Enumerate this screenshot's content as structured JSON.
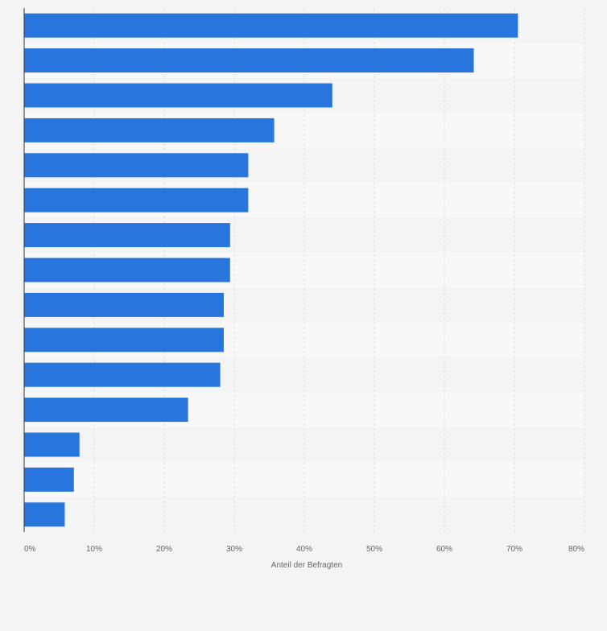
{
  "colors": {
    "page_background": "#f4f4f4",
    "bar": "#2876dd",
    "row_band_a": "#f4f4f4",
    "row_band_b": "#f8f8f8",
    "gridline": "#dcdcdc",
    "axis": "#333333",
    "tick_text": "#666666"
  },
  "chart_data": {
    "type": "bar",
    "orientation": "horizontal",
    "title": "",
    "xlabel": "Anteil der Befragten",
    "ylabel": "",
    "xlim": [
      0,
      80
    ],
    "x_ticks": [
      0,
      10,
      20,
      30,
      40,
      50,
      60,
      70,
      80
    ],
    "x_tick_labels": [
      "0%",
      "10%",
      "20%",
      "30%",
      "40%",
      "50%",
      "60%",
      "70%",
      "80%"
    ],
    "grid": true,
    "legend": "none",
    "categories": [
      "",
      "",
      "",
      "",
      "",
      "",
      "",
      "",
      "",
      "",
      "",
      "",
      "",
      "",
      ""
    ],
    "values": [
      70.5,
      64.2,
      44.0,
      35.7,
      32.0,
      32.0,
      29.4,
      29.4,
      28.5,
      28.5,
      28.0,
      23.4,
      7.9,
      7.1,
      5.8
    ]
  }
}
